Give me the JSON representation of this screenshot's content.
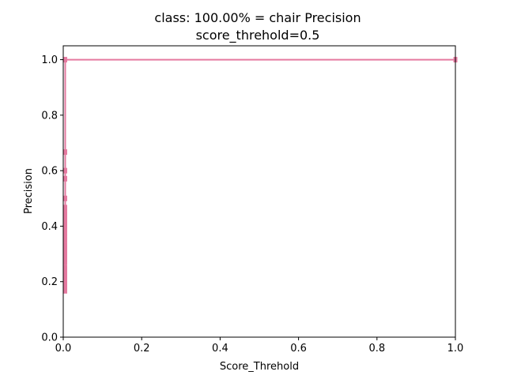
{
  "chart_data": {
    "type": "line",
    "title": "class: 100.00% = chair Precision",
    "subtitle": "score_threhold=0.5",
    "xlabel": "Score_Threhold",
    "ylabel": "Precision",
    "xlim": [
      0.0,
      1.0
    ],
    "ylim": [
      0.0,
      1.05
    ],
    "x_ticks": [
      "0.0",
      "0.2",
      "0.4",
      "0.6",
      "0.8",
      "1.0"
    ],
    "y_ticks": [
      "0.0",
      "0.2",
      "0.4",
      "0.6",
      "0.8",
      "1.0"
    ],
    "grid": false,
    "series": [
      {
        "color": "#e57aa0",
        "x": [
          1.0,
          0.005,
          0.005,
          0.005,
          0.005,
          0.005,
          0.005,
          0.005,
          0.005,
          0.005,
          0.005,
          0.005,
          0.005,
          0.005,
          0.005,
          0.005,
          0.005,
          0.005,
          0.005,
          0.005,
          0.005,
          0.005,
          0.005,
          0.005,
          0.005,
          0.005,
          0.005,
          0.005,
          0.005,
          0.005,
          0.005,
          0.005,
          0.005
        ],
        "y": [
          1.0,
          1.0,
          0.667,
          0.6,
          0.571,
          0.5,
          0.467,
          0.45,
          0.44,
          0.43,
          0.42,
          0.41,
          0.4,
          0.39,
          0.375,
          0.36,
          0.35,
          0.33,
          0.32,
          0.31,
          0.3,
          0.29,
          0.28,
          0.27,
          0.25,
          0.24,
          0.23,
          0.22,
          0.21,
          0.2,
          0.19,
          0.18,
          0.167
        ]
      }
    ]
  }
}
